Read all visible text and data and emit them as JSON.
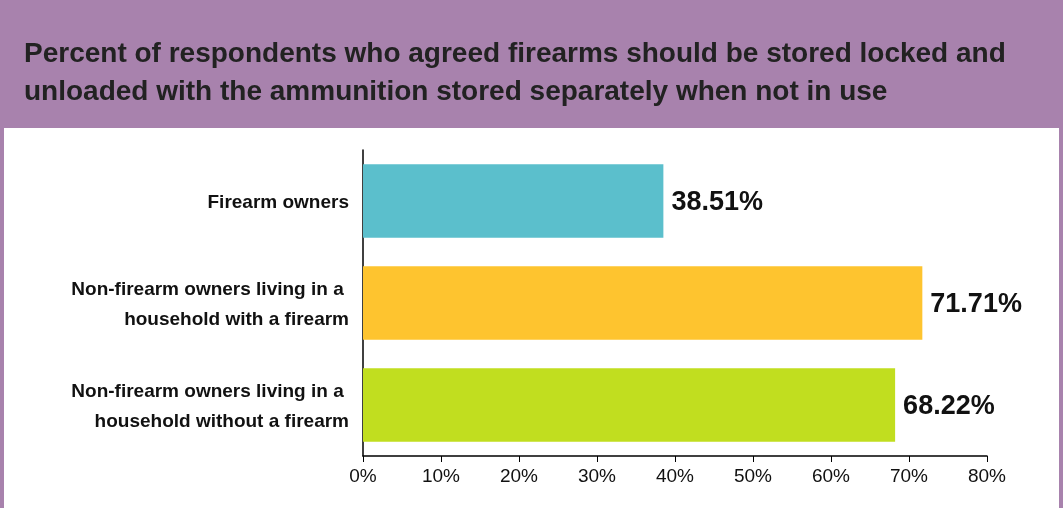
{
  "chart_data": {
    "type": "bar",
    "orientation": "horizontal",
    "title": "Percent of respondents who agreed firearms should be stored locked and unloaded with the ammunition stored separately when not in use",
    "categories": [
      "Firearm owners",
      "Non-firearm owners living in a household with a firearm",
      "Non-firearm owners living in a household without a firearm"
    ],
    "values": [
      38.51,
      71.71,
      68.22
    ],
    "colors": [
      "#5bbfcc",
      "#fec42f",
      "#c1de1f"
    ],
    "value_labels": [
      "38.51%",
      "71.71%",
      "68.22%"
    ],
    "xlim": [
      0,
      80
    ],
    "xticks": [
      {
        "value": 0,
        "label": "0%"
      },
      {
        "value": 10,
        "label": "10%"
      },
      {
        "value": 20,
        "label": "20%"
      },
      {
        "value": 30,
        "label": "30%"
      },
      {
        "value": 40,
        "label": "40%"
      },
      {
        "value": 50,
        "label": "50%"
      },
      {
        "value": 60,
        "label": "60%"
      },
      {
        "value": 70,
        "label": "70%"
      },
      {
        "value": 80,
        "label": "80%"
      }
    ],
    "grid": false
  }
}
